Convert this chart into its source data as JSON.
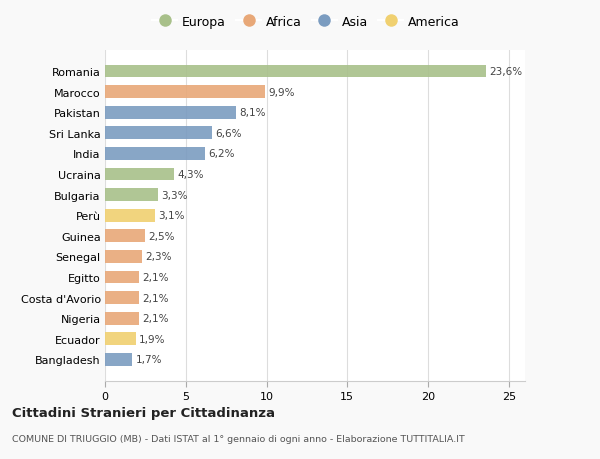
{
  "countries": [
    "Romania",
    "Marocco",
    "Pakistan",
    "Sri Lanka",
    "India",
    "Ucraina",
    "Bulgaria",
    "Perù",
    "Guinea",
    "Senegal",
    "Egitto",
    "Costa d'Avorio",
    "Nigeria",
    "Ecuador",
    "Bangladesh"
  ],
  "values": [
    23.6,
    9.9,
    8.1,
    6.6,
    6.2,
    4.3,
    3.3,
    3.1,
    2.5,
    2.3,
    2.1,
    2.1,
    2.1,
    1.9,
    1.7
  ],
  "labels": [
    "23,6%",
    "9,9%",
    "8,1%",
    "6,6%",
    "6,2%",
    "4,3%",
    "3,3%",
    "3,1%",
    "2,5%",
    "2,3%",
    "2,1%",
    "2,1%",
    "2,1%",
    "1,9%",
    "1,7%"
  ],
  "continents": [
    "Europa",
    "Africa",
    "Asia",
    "Asia",
    "Asia",
    "Europa",
    "Europa",
    "America",
    "Africa",
    "Africa",
    "Africa",
    "Africa",
    "Africa",
    "America",
    "Asia"
  ],
  "colors": {
    "Europa": "#a8c08a",
    "Africa": "#e8a878",
    "Asia": "#7b9cc0",
    "America": "#f0d070"
  },
  "legend_order": [
    "Europa",
    "Africa",
    "Asia",
    "America"
  ],
  "title": "Cittadini Stranieri per Cittadinanza",
  "subtitle": "COMUNE DI TRIUGGIO (MB) - Dati ISTAT al 1° gennaio di ogni anno - Elaborazione TUTTITALIA.IT",
  "xlim": [
    0,
    26
  ],
  "xticks": [
    0,
    5,
    10,
    15,
    20,
    25
  ],
  "background_color": "#f9f9f9",
  "bar_background": "#ffffff",
  "grid_color": "#dddddd"
}
